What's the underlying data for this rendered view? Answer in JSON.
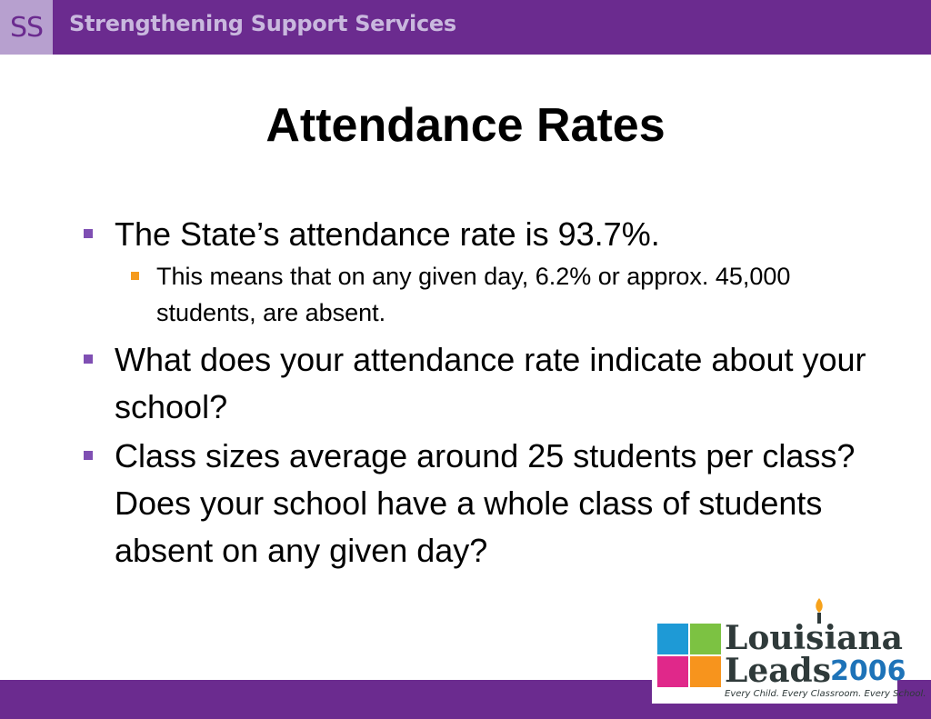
{
  "header": {
    "logo_text": "SS",
    "title": "Strengthening Support Services"
  },
  "slide": {
    "title": "Attendance Rates",
    "bullets": [
      {
        "text": "The State’s attendance rate is 93.7%.",
        "sub": [
          "This means that on any given day, 6.2% or approx. 45,000 students, are absent."
        ]
      },
      {
        "text": "What does your attendance rate indicate about your school?"
      },
      {
        "text": "Class sizes average around 25 students per class? Does your school have a whole class of students absent on any given day?"
      }
    ]
  },
  "footer_logo": {
    "line1": "Louisiana",
    "line2": "Leads",
    "year": "2006",
    "tagline": "Every Child. Every Classroom. Every School."
  },
  "colors": {
    "header_bg": "#6b2b8f",
    "bullet_primary": "#7f4fb3",
    "bullet_secondary": "#f59a1c"
  }
}
